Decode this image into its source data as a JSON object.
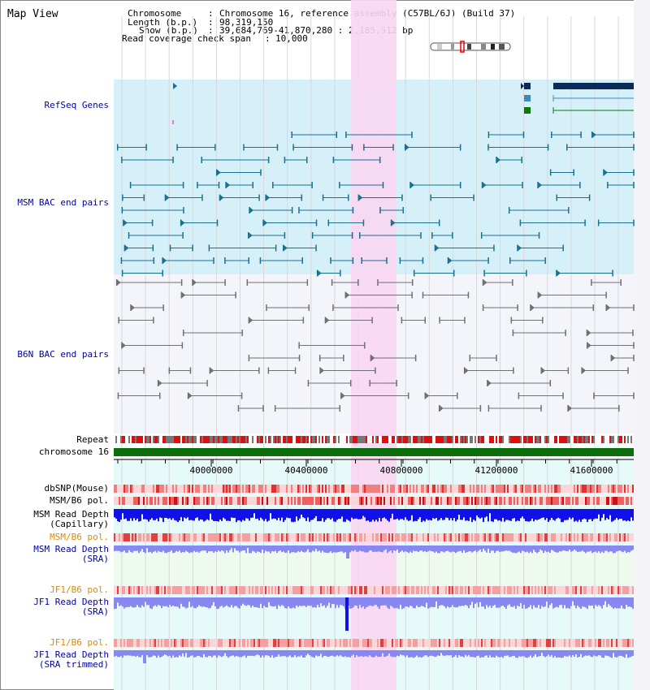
{
  "title": "Map View",
  "info": {
    "chromosome_key": "Chromosome",
    "chromosome_val": "Chromosome 16, reference assembly (C57BL/6J) (Build 37)",
    "length_key": "Length (b.p.)",
    "length_val": "98,319,150",
    "show_key": "Show (b.p.)",
    "show_val": "39,684,769-41,870,280 : 2,185,512 bp",
    "read_key": "Read coverage check span",
    "read_val": "10,000"
  },
  "tracks": {
    "refseq": "RefSeq Genes",
    "msm_bac": "MSM BAC end pairs",
    "b6n_bac": "B6N BAC end pairs",
    "repeat": "Repeat",
    "chrom": "chromosome 16",
    "dbsnp": "dbSNP(Mouse)",
    "msm_b6_pol_1": "MSM/B6 pol.",
    "msm_depth_cap_1": "MSM Read Depth",
    "msm_depth_cap_2": "(Capillary)",
    "msm_b6_pol_2": "MSM/B6 pol.",
    "msm_depth_sra_1": "MSM Read Depth",
    "msm_depth_sra_2": "(SRA)",
    "jf1_b6_pol_1": "JF1/B6 pol.",
    "jf1_depth_sra_1": "JF1 Read Depth",
    "jf1_depth_sra_2": "(SRA)",
    "jf1_b6_pol_2": "JF1/B6 pol.",
    "jf1_depth_trim_1": "JF1 Read Depth",
    "jf1_depth_trim_2": "(SRA trimmed)"
  },
  "axis": {
    "ticks": [
      "40000000",
      "40400000",
      "40800000",
      "41200000",
      "41600000"
    ]
  },
  "colors": {
    "refseq_bg": "#d6f0fa",
    "highlight": "#f9d6f2",
    "chrom_bar": "#0a6e0a",
    "msm_feature": "#1a7090",
    "b6n_feature": "#707070",
    "depth_dark": "#1010e8",
    "depth_light": "#8888f0"
  }
}
